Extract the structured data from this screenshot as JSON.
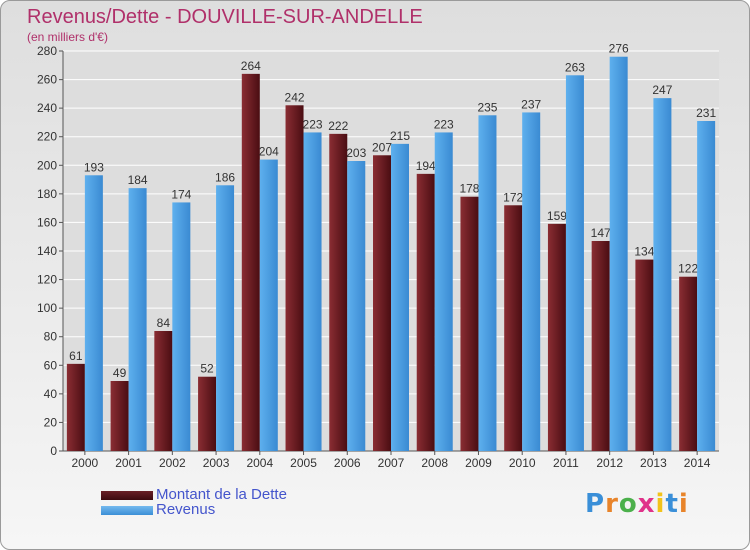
{
  "header": {
    "title": "Revenus/Dette - DOUVILLE-SUR-ANDELLE",
    "subtitle": "(en milliers d'€)"
  },
  "chart_data": {
    "type": "bar",
    "title": "Revenus/Dette - DOUVILLE-SUR-ANDELLE",
    "subtitle": "(en milliers d'€)",
    "xlabel": "",
    "ylabel": "",
    "ylim": [
      0,
      280
    ],
    "yticks": [
      0,
      20,
      40,
      60,
      80,
      100,
      120,
      140,
      160,
      180,
      200,
      220,
      240,
      260,
      280
    ],
    "grid": true,
    "legend_position": "bottom-left",
    "categories": [
      "2000",
      "2001",
      "2002",
      "2003",
      "2004",
      "2005",
      "2006",
      "2007",
      "2008",
      "2009",
      "2010",
      "2011",
      "2012",
      "2013",
      "2014"
    ],
    "series": [
      {
        "name": "Montant de la Dette",
        "color": "#6e1b22",
        "values": [
          61,
          49,
          84,
          52,
          264,
          242,
          222,
          207,
          194,
          178,
          172,
          159,
          147,
          134,
          122
        ]
      },
      {
        "name": "Revenus",
        "color": "#4aa3e6",
        "values": [
          193,
          184,
          174,
          186,
          204,
          223,
          203,
          215,
          223,
          235,
          237,
          263,
          276,
          247,
          231
        ]
      }
    ]
  },
  "legend": {
    "items": [
      {
        "label": "Montant de la Dette",
        "color": "#6e1b22"
      },
      {
        "label": "Revenus",
        "color": "#4aa3e6"
      }
    ]
  },
  "logo": {
    "text": "Proxiti",
    "letters": [
      "P",
      "r",
      "o",
      "x",
      "i",
      "t",
      "i"
    ],
    "colors": [
      "#3a8fd8",
      "#e8842a",
      "#4bb04b",
      "#e0328a",
      "#f2c31a",
      "#3a8fd8",
      "#e8842a"
    ]
  }
}
